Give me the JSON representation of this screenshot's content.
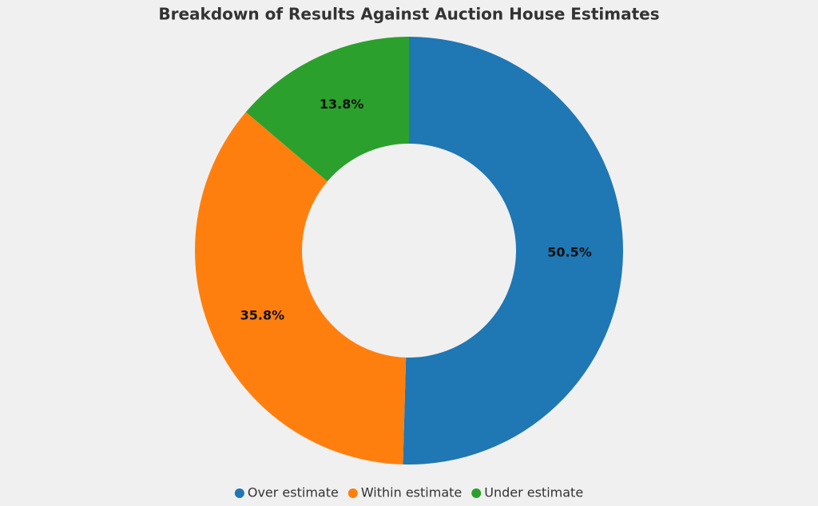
{
  "chart_data": {
    "type": "donut",
    "title": "Breakdown of Results Against Auction House Estimates",
    "categories": [
      "Over estimate",
      "Within estimate",
      "Under estimate"
    ],
    "values": [
      50.5,
      35.8,
      13.8
    ],
    "value_labels": [
      "50.5%",
      "35.8%",
      "13.8%"
    ],
    "colors": [
      "#1f77b4",
      "#ff7f0e",
      "#2ca02c"
    ],
    "legend": "bottom"
  }
}
